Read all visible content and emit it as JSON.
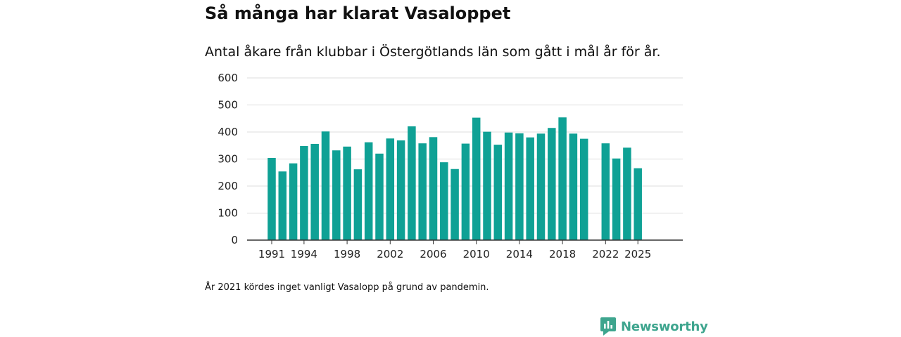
{
  "header": {
    "title": "Så många har klarat Vasaloppet",
    "subtitle": "Antal åkare från klubbar i Östergötlands län som gått i mål år för år."
  },
  "footnote": "År 2021 kördes inget vanligt Vasalopp på grund av pandemin.",
  "brand": {
    "name": "Newsworthy",
    "icon": "newsworthy-logo-icon",
    "color": "#3ea58e"
  },
  "colors": {
    "bar": "#0fa195",
    "grid": "#dddddd",
    "axis": "#333333"
  },
  "chart_data": {
    "type": "bar",
    "title": "Så många har klarat Vasaloppet",
    "xlabel": "",
    "ylabel": "",
    "ylim": [
      0,
      600
    ],
    "yticks": [
      0,
      100,
      200,
      300,
      400,
      500,
      600
    ],
    "xticks": [
      "1991",
      "1994",
      "1998",
      "2002",
      "2006",
      "2010",
      "2014",
      "2018",
      "2022",
      "2025"
    ],
    "grid": true,
    "categories": [
      "1991",
      "1992",
      "1993",
      "1994",
      "1995",
      "1996",
      "1997",
      "1998",
      "1999",
      "2000",
      "2001",
      "2002",
      "2003",
      "2004",
      "2005",
      "2006",
      "2007",
      "2008",
      "2009",
      "2010",
      "2011",
      "2012",
      "2013",
      "2014",
      "2015",
      "2016",
      "2017",
      "2018",
      "2019",
      "2020",
      "2021",
      "2022",
      "2023",
      "2024",
      "2025"
    ],
    "values": [
      304,
      254,
      284,
      348,
      356,
      402,
      332,
      346,
      262,
      362,
      320,
      376,
      369,
      421,
      358,
      381,
      288,
      263,
      357,
      453,
      401,
      353,
      398,
      395,
      380,
      394,
      415,
      454,
      394,
      375,
      null,
      358,
      302,
      342,
      266
    ]
  }
}
